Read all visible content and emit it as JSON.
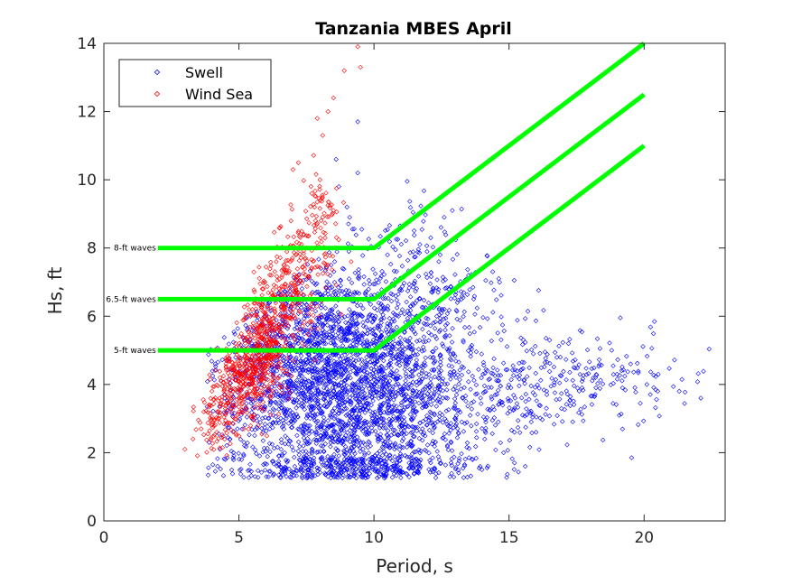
{
  "chart_data": {
    "type": "scatter",
    "title": "Tanzania MBES April",
    "xlabel": "Period, s",
    "ylabel": "Hs, ft",
    "xlim": [
      0,
      23
    ],
    "ylim": [
      0,
      14
    ],
    "xticks": [
      0,
      5,
      10,
      15,
      20
    ],
    "yticks": [
      0,
      2,
      4,
      6,
      8,
      10,
      12,
      14
    ],
    "grid": false,
    "legend_position": "top-left",
    "series": [
      {
        "name": "Swell",
        "color": "#0000ff",
        "marker": "diamond",
        "clusters": [
          {
            "x": [
              9.2,
              2.2
            ],
            "y": [
              3.4,
              1.9
            ],
            "count": 2200
          },
          {
            "x": [
              7.2,
              1.6
            ],
            "y": [
              4.8,
              1.4
            ],
            "count": 700
          },
          {
            "x": [
              10.0,
              2.2
            ],
            "y": [
              5.6,
              1.3
            ],
            "count": 380
          },
          {
            "x": [
              14.2,
              3.2
            ],
            "y": [
              3.9,
              0.8
            ],
            "count": 380
          },
          {
            "x": [
              18.5,
              2.2
            ],
            "y": [
              4.2,
              0.6
            ],
            "count": 70
          },
          {
            "x": [
              12.0,
              1.2
            ],
            "y": [
              7.0,
              1.1
            ],
            "count": 80
          }
        ],
        "points": [
          [
            22.1,
            3.6
          ],
          [
            21.3,
            3.8
          ],
          [
            20.1,
            4.0
          ],
          [
            19.5,
            4.6
          ],
          [
            19.0,
            4.3
          ],
          [
            18.2,
            4.2
          ],
          [
            17.4,
            4.5
          ],
          [
            18.8,
            5.0
          ],
          [
            17.2,
            5.2
          ],
          [
            16.5,
            5.3
          ],
          [
            16.9,
            4.8
          ],
          [
            19.2,
            3.9
          ],
          [
            15.9,
            4.9
          ],
          [
            15.3,
            4.4
          ],
          [
            15.6,
            1.6
          ],
          [
            15.2,
            1.7
          ],
          [
            14.8,
            2.0
          ],
          [
            14.1,
            2.4
          ],
          [
            15.2,
            2.6
          ],
          [
            14.6,
            2.9
          ],
          [
            16.0,
            2.6
          ],
          [
            15.5,
            3.1
          ],
          [
            16.4,
            3.7
          ],
          [
            9.4,
            11.7
          ],
          [
            8.7,
            9.8
          ],
          [
            8.6,
            10.6
          ],
          [
            9.0,
            9.2
          ],
          [
            9.4,
            10.2
          ],
          [
            9.1,
            8.9
          ],
          [
            12.9,
            9.1
          ],
          [
            12.6,
            8.9
          ],
          [
            12.1,
            8.3
          ],
          [
            11.7,
            8.1
          ],
          [
            12.4,
            7.6
          ],
          [
            10.5,
            7.8
          ],
          [
            13.5,
            7.2
          ],
          [
            8.3,
            1.3
          ],
          [
            8.7,
            1.4
          ],
          [
            9.0,
            1.5
          ],
          [
            4.3,
            2.1
          ],
          [
            4.5,
            1.8
          ],
          [
            4.8,
            2.0
          ],
          [
            3.9,
            2.3
          ],
          [
            10.5,
            1.5
          ],
          [
            11.3,
            1.7
          ]
        ]
      },
      {
        "name": "Wind Sea",
        "color": "#ff0000",
        "marker": "diamond",
        "clusters": [
          {
            "x": [
              5.0,
              0.45
            ],
            "y": [
              4.1,
              0.6
            ],
            "count": 250
          },
          {
            "x": [
              6.0,
              0.45
            ],
            "y": [
              5.2,
              0.8
            ],
            "count": 360
          },
          {
            "x": [
              7.0,
              0.45
            ],
            "y": [
              6.9,
              0.9
            ],
            "count": 200
          },
          {
            "x": [
              4.2,
              0.35
            ],
            "y": [
              2.9,
              0.5
            ],
            "count": 90
          },
          {
            "x": [
              8.0,
              0.35
            ],
            "y": [
              8.6,
              1.0
            ],
            "count": 90
          }
        ],
        "points": [
          [
            9.4,
            13.9
          ],
          [
            9.5,
            13.3
          ],
          [
            8.9,
            13.2
          ],
          [
            8.0,
            10.0
          ],
          [
            7.7,
            9.6
          ],
          [
            8.5,
            9.1
          ],
          [
            7.2,
            10.5
          ],
          [
            7.0,
            10.3
          ],
          [
            8.1,
            11.3
          ],
          [
            7.9,
            11.8
          ],
          [
            7.8,
            9.2
          ],
          [
            7.4,
            8.4
          ],
          [
            7.1,
            7.8
          ],
          [
            6.9,
            7.6
          ],
          [
            6.6,
            7.2
          ],
          [
            3.0,
            2.1
          ],
          [
            3.3,
            2.4
          ],
          [
            3.6,
            2.7
          ],
          [
            3.7,
            3.2
          ],
          [
            3.9,
            3.4
          ],
          [
            4.0,
            3.8
          ],
          [
            4.3,
            4.2
          ],
          [
            4.6,
            4.7
          ],
          [
            4.9,
            5.1
          ],
          [
            5.2,
            5.9
          ],
          [
            5.5,
            6.2
          ],
          [
            5.9,
            6.8
          ],
          [
            6.2,
            7.2
          ],
          [
            8.5,
            12.4
          ],
          [
            8.3,
            12.0
          ]
        ]
      }
    ],
    "threshold_lines": [
      {
        "label": "8-ft waves",
        "color": "#00ff00",
        "points": [
          [
            2,
            8
          ],
          [
            10,
            8
          ],
          [
            20,
            14
          ]
        ]
      },
      {
        "label": "6.5-ft waves",
        "color": "#00ff00",
        "points": [
          [
            2,
            6.5
          ],
          [
            10,
            6.5
          ],
          [
            20,
            12.5
          ]
        ]
      },
      {
        "label": "5-ft waves",
        "color": "#00ff00",
        "points": [
          [
            2,
            5
          ],
          [
            10,
            5
          ],
          [
            20,
            11
          ]
        ]
      }
    ]
  }
}
